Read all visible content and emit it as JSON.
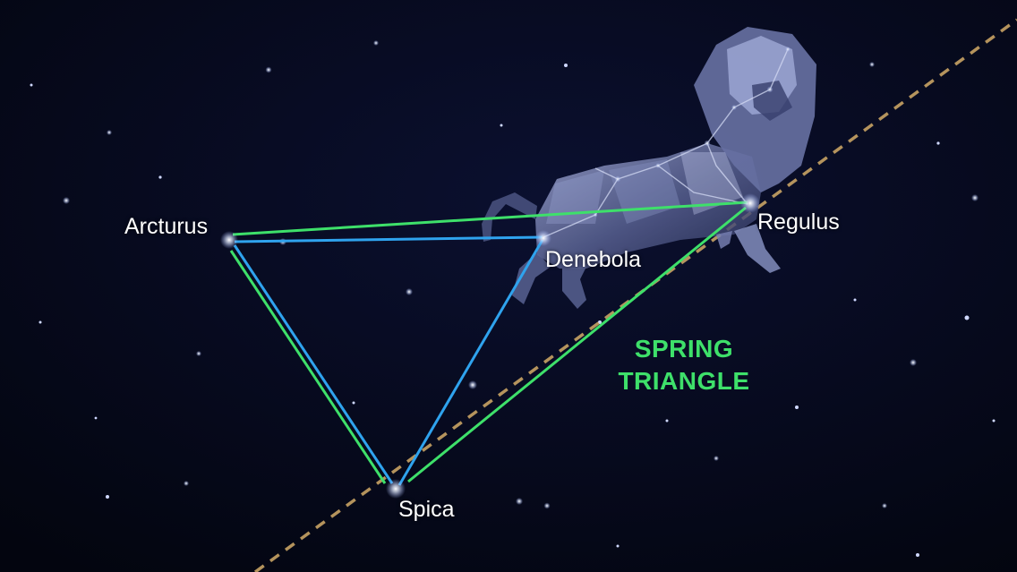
{
  "stars": {
    "arcturus": "Arcturus",
    "denebola": "Denebola",
    "regulus": "Regulus",
    "spica": "Spica"
  },
  "asterism": {
    "line1": "SPRING",
    "line2": "TRIANGLE"
  },
  "colors": {
    "sky": "#050818",
    "spring_triangle": "#3ee06a",
    "inner_triangle": "#2fa3ee",
    "ecliptic": "#c8a364",
    "constellation_figure": "#8e99c9",
    "label_text": "#ffffff"
  }
}
